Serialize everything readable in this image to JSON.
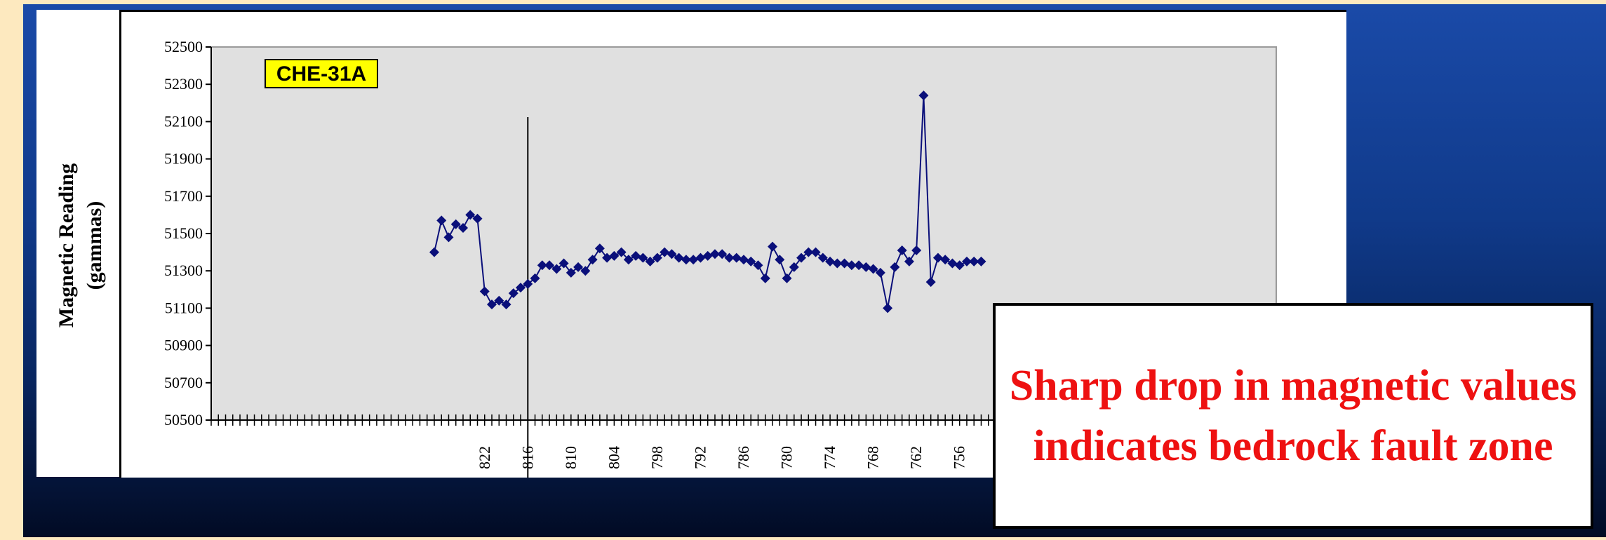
{
  "chart_data": {
    "type": "line",
    "ylabel_line1": "Magnetic Reading",
    "ylabel_line2": "(gammas)",
    "ylim": [
      50500,
      52500
    ],
    "y_ticks": [
      50500,
      50700,
      50900,
      51100,
      51300,
      51500,
      51700,
      51900,
      52100,
      52300,
      52500
    ],
    "x_range": [
      860,
      712
    ],
    "x_tick_labels": [
      822,
      816,
      810,
      804,
      798,
      792,
      786,
      780,
      774,
      768,
      762,
      756
    ],
    "marker": "diamond",
    "series_color": "#0a0f7a",
    "plot_background": "#e0e0e0",
    "series": [
      {
        "x": [
          829,
          828,
          827,
          826,
          825,
          824,
          823,
          822,
          821,
          820,
          819,
          818,
          817,
          816,
          815,
          814,
          813,
          812,
          811,
          810,
          809,
          808,
          807,
          806,
          805,
          804,
          803,
          802,
          801,
          800,
          799,
          798,
          797,
          796,
          795,
          794,
          793,
          792,
          791,
          790,
          789,
          788,
          787,
          786,
          785,
          784,
          783,
          782,
          781,
          780,
          779,
          778,
          777,
          776,
          775,
          774,
          773,
          772,
          771,
          770,
          769,
          768,
          767,
          766,
          765,
          764,
          763,
          762,
          761,
          760,
          759,
          758,
          757,
          756,
          755,
          754,
          753
        ],
        "y": [
          51400,
          51570,
          51480,
          51550,
          51530,
          51600,
          51580,
          51190,
          51120,
          51140,
          51120,
          51180,
          51210,
          51230,
          51260,
          51330,
          51330,
          51310,
          51340,
          51290,
          51320,
          51300,
          51360,
          51420,
          51370,
          51380,
          51400,
          51360,
          51380,
          51370,
          51350,
          51370,
          51400,
          51390,
          51370,
          51360,
          51360,
          51370,
          51380,
          51390,
          51390,
          51370,
          51370,
          51360,
          51350,
          51330,
          51260,
          51430,
          51360,
          51260,
          51320,
          51370,
          51400,
          51400,
          51370,
          51350,
          51340,
          51340,
          51330,
          51330,
          51320,
          51310,
          51290,
          51100,
          51320,
          51410,
          51350,
          51410,
          52240,
          51240,
          51370,
          51360,
          51340,
          51330,
          51350,
          51350,
          51350
        ]
      }
    ],
    "annotation": {
      "label": "CHE-31A",
      "x": 816,
      "background": "#ffff00"
    }
  },
  "note": {
    "text": "Sharp drop in magnetic values indicates bedrock fault zone",
    "color": "#ee1111"
  }
}
